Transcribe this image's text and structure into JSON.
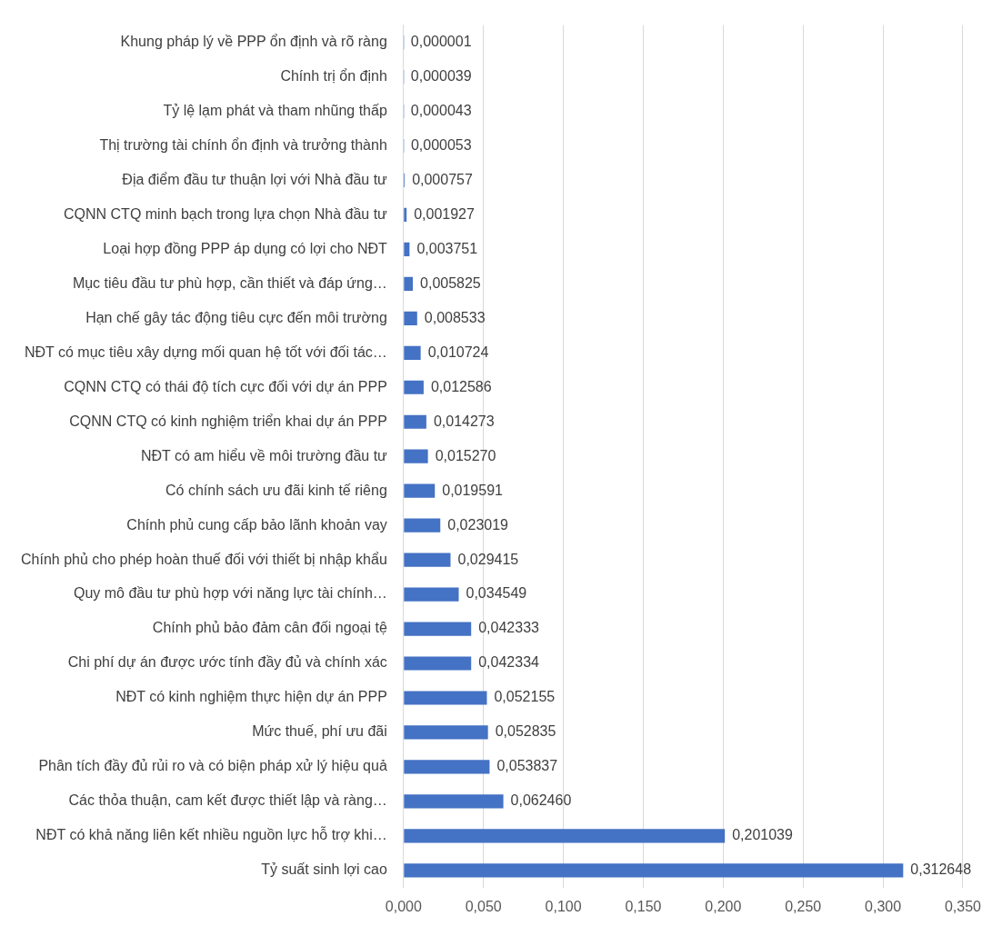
{
  "chart_data": {
    "type": "bar",
    "orientation": "horizontal",
    "categories": [
      "Khung pháp lý về PPP ổn định và rõ ràng",
      "Chính trị ổn định",
      "Tỷ lệ lạm phát và tham nhũng thấp",
      "Thị trường tài chính ổn định và trưởng thành",
      "Địa điểm đầu tư thuận lợi với Nhà đầu tư",
      "CQNN CTQ minh bạch trong lựa chọn Nhà đầu tư",
      "Loại hợp đồng PPP áp dụng có lợi cho NĐT",
      "Mục tiêu đầu tư phù hợp, cần thiết và đáp ứng…",
      "Hạn chế gây tác động tiêu cực đến môi trường",
      "NĐT có mục tiêu xây dựng mối quan hệ tốt với đối tác…",
      "CQNN CTQ có thái độ tích cực đối với dự án PPP",
      "CQNN CTQ có kinh nghiệm triển khai dự án PPP",
      "NĐT có am hiểu về môi trường đầu tư",
      "Có chính sách ưu đãi kinh tế riêng",
      "Chính phủ cung cấp bảo lãnh khoản vay",
      "Chính phủ cho phép hoàn thuế đối với thiết bị nhập khẩu",
      "Quy mô đầu tư phù hợp với năng lực tài chính…",
      "Chính phủ bảo đảm cân đối ngoại tệ",
      "Chi phí dự án được ước tính đầy đủ và chính xác",
      "NĐT có kinh nghiệm thực hiện dự án PPP",
      "Mức thuế, phí ưu đãi",
      "Phân tích đầy đủ rủi ro và có biện pháp xử lý hiệu quả",
      "Các thỏa thuận, cam kết được thiết lập và ràng…",
      "NĐT có khả năng liên kết nhiều nguồn lực hỗ trợ khi…",
      "Tỷ suất sinh lợi cao"
    ],
    "values": [
      1e-06,
      3.9e-05,
      4.3e-05,
      5.3e-05,
      0.000757,
      0.001927,
      0.003751,
      0.005825,
      0.008533,
      0.010724,
      0.012586,
      0.014273,
      0.01527,
      0.019591,
      0.023019,
      0.029415,
      0.034549,
      0.042333,
      0.042334,
      0.052155,
      0.052835,
      0.053837,
      0.06246,
      0.201039,
      0.312648
    ],
    "value_labels": [
      "0,000001",
      "0,000039",
      "0,000043",
      "0,000053",
      "0,000757",
      "0,001927",
      "0,003751",
      "0,005825",
      "0,008533",
      "0,010724",
      "0,012586",
      "0,014273",
      "0,015270",
      "0,019591",
      "0,023019",
      "0,029415",
      "0,034549",
      "0,042333",
      "0,042334",
      "0,052155",
      "0,052835",
      "0,053837",
      "0,062460",
      "0,201039",
      "0,312648"
    ],
    "color": "#4472c4",
    "xlim": [
      0,
      0.35
    ],
    "xticks": [
      {
        "value": 0,
        "label": "0,000"
      },
      {
        "value": 0.05,
        "label": "0,050"
      },
      {
        "value": 0.1,
        "label": "0,100"
      },
      {
        "value": 0.15,
        "label": "0,150"
      },
      {
        "value": 0.2,
        "label": "0,200"
      },
      {
        "value": 0.25,
        "label": "0,250"
      },
      {
        "value": 0.3,
        "label": "0,300"
      },
      {
        "value": 0.35,
        "label": "0,350"
      }
    ],
    "grid": "x"
  }
}
